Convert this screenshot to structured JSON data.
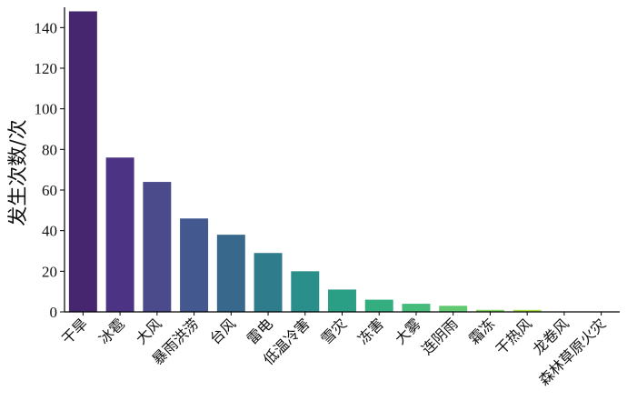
{
  "chart_data": {
    "type": "bar",
    "categories": [
      "干旱",
      "冰雹",
      "大风",
      "暴雨洪涝",
      "台风",
      "雷电",
      "低温冷害",
      "雪灾",
      "冻害",
      "大雾",
      "连阴雨",
      "霜冻",
      "干热风",
      "龙卷风",
      "森林草原火灾"
    ],
    "values": [
      148,
      76,
      64,
      46,
      38,
      29,
      20,
      11,
      6,
      4,
      3,
      1,
      1,
      0,
      0
    ],
    "xlabel": "",
    "ylabel": "发生次数/次",
    "ylim": [
      0,
      150
    ],
    "yticks": [
      0,
      20,
      40,
      60,
      80,
      100,
      120,
      140
    ],
    "grid": false,
    "colors": [
      "#46266e",
      "#4d3383",
      "#4b4a8a",
      "#42588e",
      "#38688c",
      "#2f7c8d",
      "#2a8e8b",
      "#2a9f86",
      "#34ae7f",
      "#45bb7c",
      "#62c971",
      "#80d262",
      "#a8dc4a",
      "#cfe23c",
      "#f0e52e"
    ]
  }
}
